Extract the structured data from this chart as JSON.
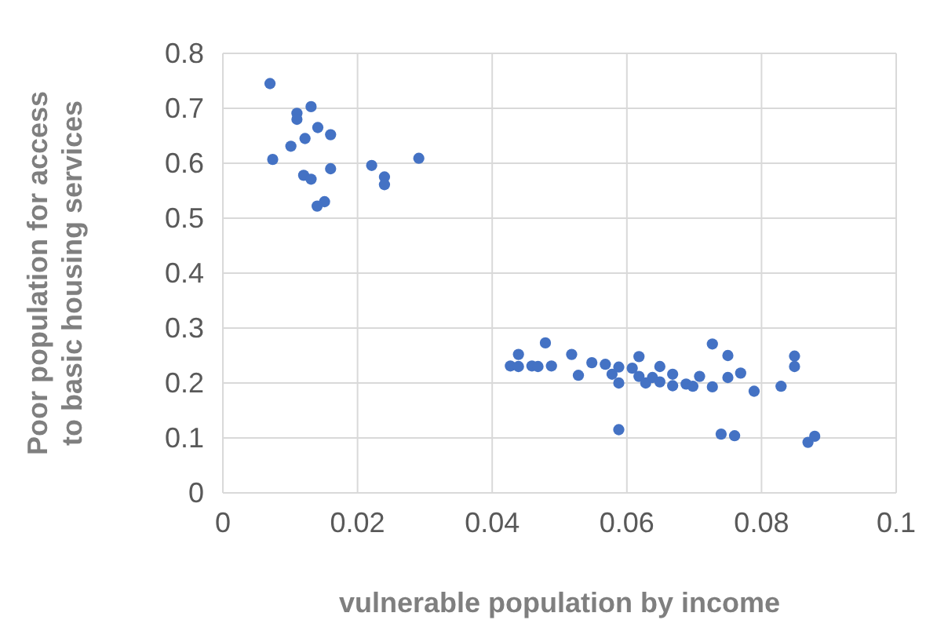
{
  "chart_data": {
    "type": "scatter",
    "xlabel": "vulnerable population by income",
    "ylabel": "Poor population for access to basic housing services",
    "xlim": [
      0,
      0.1
    ],
    "xticks": [
      0,
      0.02,
      0.04,
      0.06,
      0.08,
      0.1
    ],
    "ylim": [
      0,
      0.8
    ],
    "yticks": [
      0,
      0.1,
      0.2,
      0.3,
      0.4,
      0.5,
      0.6,
      0.7,
      0.8
    ],
    "grid": true,
    "marker": "circle",
    "series": [
      {
        "color": "#4472c4",
        "x": [
          0.007,
          0.011,
          0.011,
          0.0131,
          0.0141,
          0.016,
          0.0122,
          0.0101,
          0.0074,
          0.016,
          0.012,
          0.0131,
          0.0151,
          0.014,
          0.0221,
          0.024,
          0.024,
          0.0291,
          0.0427,
          0.0439,
          0.0439,
          0.0459,
          0.0468,
          0.0488,
          0.0479,
          0.0518,
          0.0528,
          0.0548,
          0.0568,
          0.0578,
          0.0588,
          0.0588,
          0.0588,
          0.0608,
          0.0618,
          0.0618,
          0.0628,
          0.0638,
          0.0649,
          0.0649,
          0.0668,
          0.0668,
          0.0688,
          0.0698,
          0.0708,
          0.0727,
          0.0727,
          0.075,
          0.075,
          0.0769,
          0.0789,
          0.0829,
          0.0849,
          0.0849,
          0.074,
          0.076,
          0.0869,
          0.0879
        ],
        "values": [
          0.745,
          0.691,
          0.68,
          0.703,
          0.665,
          0.652,
          0.645,
          0.631,
          0.607,
          0.59,
          0.578,
          0.571,
          0.53,
          0.522,
          0.596,
          0.575,
          0.561,
          0.609,
          0.231,
          0.252,
          0.23,
          0.231,
          0.23,
          0.231,
          0.273,
          0.252,
          0.214,
          0.237,
          0.234,
          0.216,
          0.229,
          0.2,
          0.115,
          0.227,
          0.248,
          0.212,
          0.2,
          0.21,
          0.23,
          0.202,
          0.216,
          0.195,
          0.198,
          0.194,
          0.212,
          0.271,
          0.193,
          0.25,
          0.21,
          0.218,
          0.185,
          0.194,
          0.249,
          0.23,
          0.107,
          0.104,
          0.092,
          0.103
        ]
      }
    ]
  }
}
